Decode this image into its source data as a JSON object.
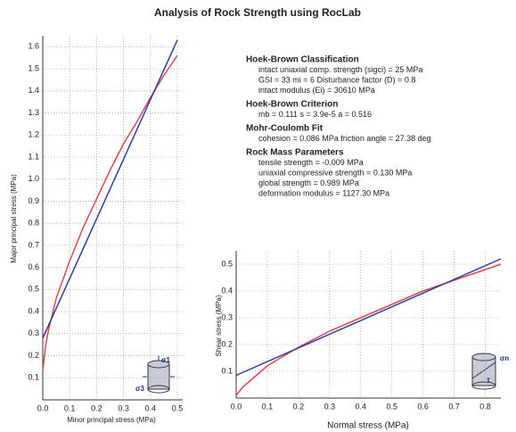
{
  "title": "Analysis of Rock Strength using RocLab",
  "panel": [
    {
      "heading": "Hoek-Brown Classification",
      "lines": [
        "intact uniaxial comp. strength (sigci) = 25 MPa",
        "GSI = 33   mi = 6   Disturbance factor (D) = 0.8",
        "intact modulus (Ei) = 30610 MPa"
      ]
    },
    {
      "heading": "Hoek-Brown Criterion",
      "lines": [
        "mb = 0.111   s = 3.9e-5   a = 0.516"
      ]
    },
    {
      "heading": "Mohr-Coulomb Fit",
      "lines": [
        "cohesion = 0.086 MPa   friction angle = 27.38 deg"
      ]
    },
    {
      "heading": "Rock Mass Parameters",
      "lines": [
        "tensile strength = -0.009 MPa",
        "uniaxial compressive strength = 0.130 MPa",
        "global strength = 0.989 MPa",
        "deformation modulus = 1127.30 MPa"
      ]
    }
  ],
  "chart_data": [
    {
      "type": "line",
      "x_label": "Minor principal stress (MPa)",
      "y_label": "Major principal stress (MPa)",
      "xlim": [
        0,
        0.52
      ],
      "ylim": [
        0,
        1.65
      ],
      "grid": true,
      "xticks": [
        {
          "value": 0,
          "label": "0.0"
        },
        0.1,
        0.2,
        0.3,
        0.4,
        0.5
      ],
      "yticks": [
        0.1,
        0.2,
        0.3,
        0.4,
        0.5,
        0.6,
        0.7,
        0.8,
        0.9,
        {
          "value": 1,
          "label": "1.0"
        },
        1.1,
        1.2,
        1.3,
        1.4,
        1.5,
        1.6
      ],
      "icon_labels": [
        "σ1",
        "σ3"
      ],
      "series": [
        {
          "color": "#e0454d",
          "x": [
            0,
            0.01,
            0.02,
            0.05,
            0.1,
            0.15,
            0.2,
            0.25,
            0.3,
            0.35,
            0.4,
            0.45,
            0.5
          ],
          "values": [
            0.13,
            0.24,
            0.31,
            0.46,
            0.63,
            0.78,
            0.91,
            1.04,
            1.16,
            1.26,
            1.37,
            1.47,
            1.56
          ]
        },
        {
          "color": "#2a3f9e",
          "x": [
            0,
            0.5
          ],
          "values": [
            0.28,
            1.63
          ]
        }
      ]
    },
    {
      "type": "line",
      "x_label": "Normal stress (MPa)",
      "y_label": "Shear stress (MPa)",
      "xlim": [
        0,
        0.85
      ],
      "ylim": [
        0,
        0.55
      ],
      "grid": true,
      "xticks": [
        {
          "value": 0,
          "label": "0.0"
        },
        0.1,
        0.2,
        0.3,
        0.4,
        0.5,
        0.6,
        0.7,
        0.8
      ],
      "yticks": [
        0.1,
        0.2,
        0.3,
        0.4,
        0.5
      ],
      "icon_labels": [
        "σn",
        "τ"
      ],
      "series": [
        {
          "color": "#e0454d",
          "x": [
            0,
            0.02,
            0.05,
            0.1,
            0.2,
            0.3,
            0.4,
            0.5,
            0.6,
            0.7,
            0.8,
            0.85
          ],
          "values": [
            0.01,
            0.04,
            0.07,
            0.12,
            0.19,
            0.25,
            0.3,
            0.35,
            0.4,
            0.44,
            0.48,
            0.5
          ]
        },
        {
          "color": "#2a3f9e",
          "x": [
            0,
            0.85
          ],
          "values": [
            0.085,
            0.52
          ]
        }
      ]
    }
  ]
}
